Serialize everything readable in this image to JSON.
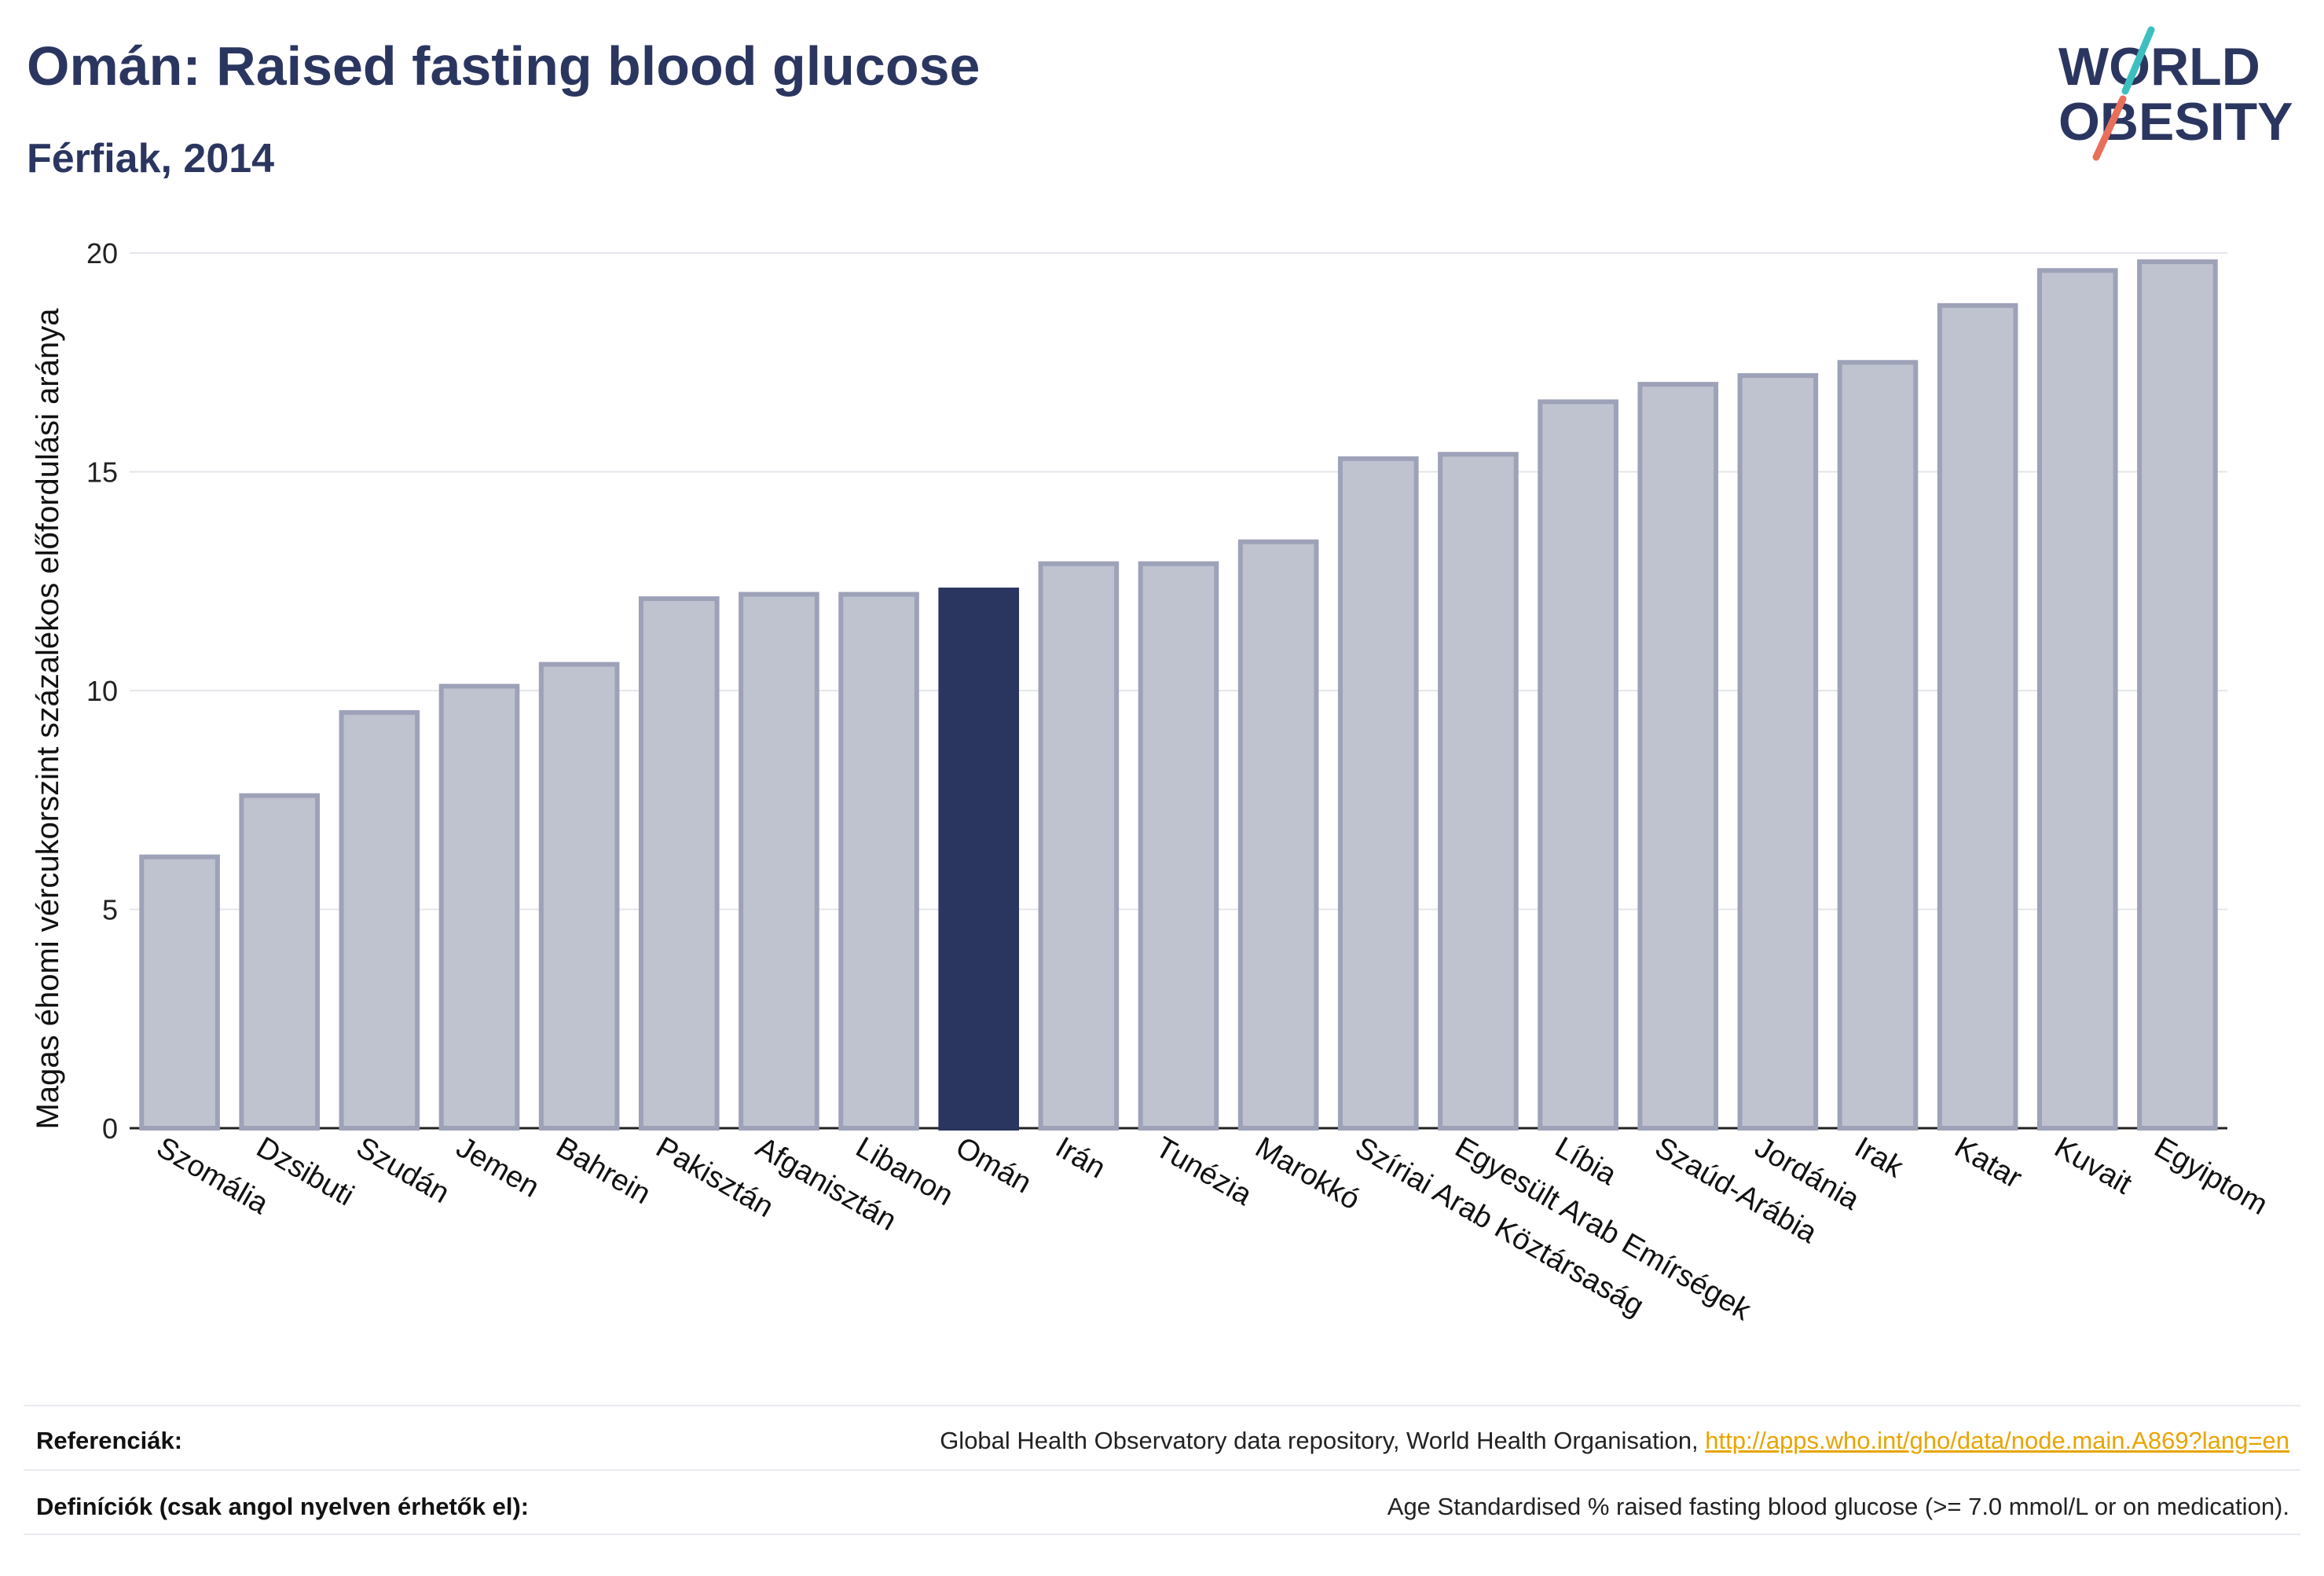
{
  "header": {
    "title": "Omán: Raised fasting blood glucose",
    "subtitle": "Férfiak, 2014"
  },
  "logo": {
    "line1": "WORLD",
    "line2": "OBESITY",
    "name": "world-obesity-logo"
  },
  "colors": {
    "highlight": "#2b3660",
    "bar_fill": "#bfc2cf",
    "bar_stroke": "#9da2b8",
    "accent_teal": "#3dbfbf",
    "accent_coral": "#e8705a"
  },
  "chart_data": {
    "type": "bar",
    "ylabel": "Magas éhomi vércukorszint százalékos előfordulási aránya",
    "xlabel": "",
    "ylim": [
      0,
      20.5
    ],
    "yticks": [
      0,
      5,
      10,
      15,
      20
    ],
    "grid": true,
    "highlight": "Omán",
    "categories": [
      "Szomália",
      "Dzsibuti",
      "Szudán",
      "Jemen",
      "Bahrein",
      "Pakisztán",
      "Afganisztán",
      "Libanon",
      "Omán",
      "Irán",
      "Tunézia",
      "Marokkó",
      "Szíriai Arab Köztársaság",
      "Egyesült Arab Emírségek",
      "Líbia",
      "Szaúd-Arábia",
      "Jordánia",
      "Irak",
      "Katar",
      "Kuvait",
      "Egyiptom"
    ],
    "values": [
      6.2,
      7.6,
      9.5,
      10.1,
      10.6,
      12.1,
      12.2,
      12.2,
      12.3,
      12.9,
      12.9,
      13.4,
      15.3,
      15.4,
      16.6,
      17.0,
      17.2,
      17.5,
      18.8,
      19.6,
      19.8
    ]
  },
  "footer": {
    "references_label": "Referenciák:",
    "references_text": "Global Health Observatory data repository, World Health Organisation, ",
    "references_link": "http://apps.who.int/gho/data/node.main.A869?lang=en",
    "definitions_label": "Definíciók (csak angol nyelven érhetők el):",
    "definitions_text": "Age Standardised % raised fasting blood glucose (>= 7.0 mmol/L or on medication)."
  }
}
